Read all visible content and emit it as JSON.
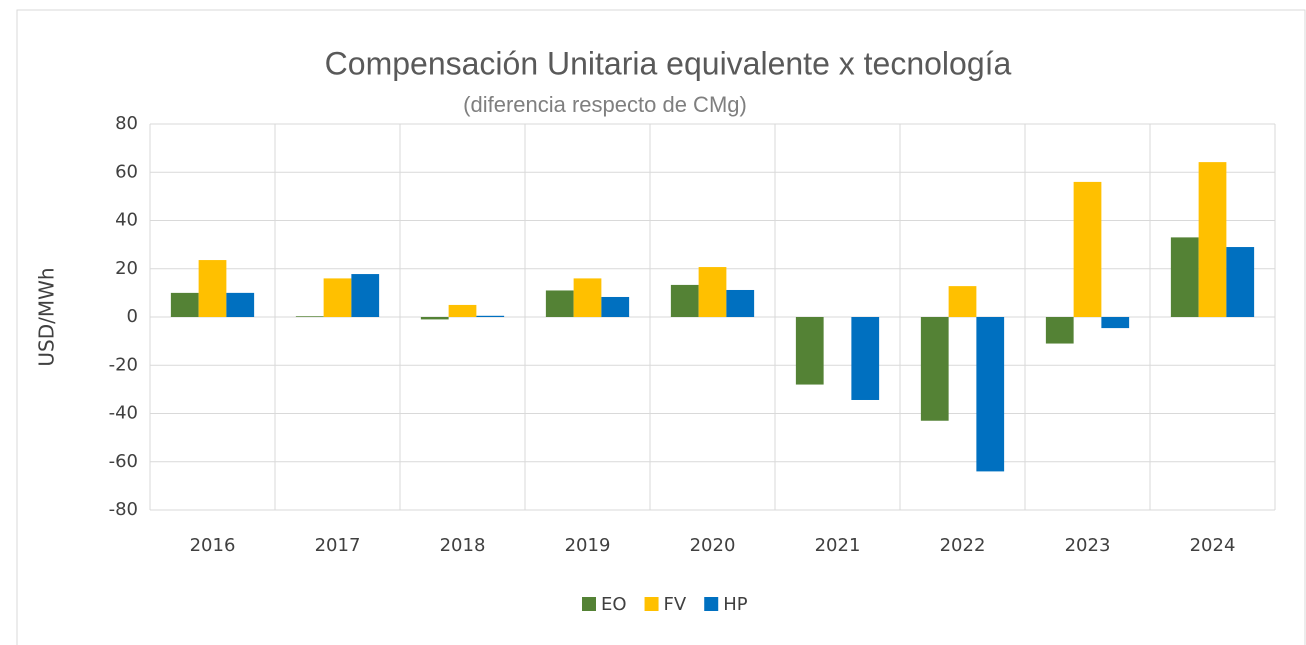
{
  "chart_data": {
    "type": "bar",
    "title": "Compensación Unitaria equivalente x tecnología",
    "subtitle": "(diferencia respecto de CMg)",
    "y_label": "USD/MWh",
    "categories": [
      "2016",
      "2017",
      "2018",
      "2019",
      "2020",
      "2021",
      "2022",
      "2023",
      "2024"
    ],
    "series": [
      {
        "name": "EO",
        "color": "#548235",
        "values": [
          10,
          0.3,
          -1,
          11,
          13.3,
          -28,
          -43,
          -11,
          33
        ]
      },
      {
        "name": "FV",
        "color": "#ffc000",
        "values": [
          23.6,
          16,
          5,
          16,
          20.7,
          0,
          12.8,
          56,
          64.2
        ]
      },
      {
        "name": "HP",
        "color": "#0070c0",
        "values": [
          10,
          17.8,
          0.5,
          8.3,
          11.2,
          -34.4,
          -64,
          -4.6,
          29
        ]
      }
    ],
    "ylim": [
      -80,
      80
    ],
    "yticks": [
      -80,
      -60,
      -40,
      -20,
      0,
      20,
      40,
      60,
      80
    ],
    "grid": true,
    "legend": "bottom"
  }
}
